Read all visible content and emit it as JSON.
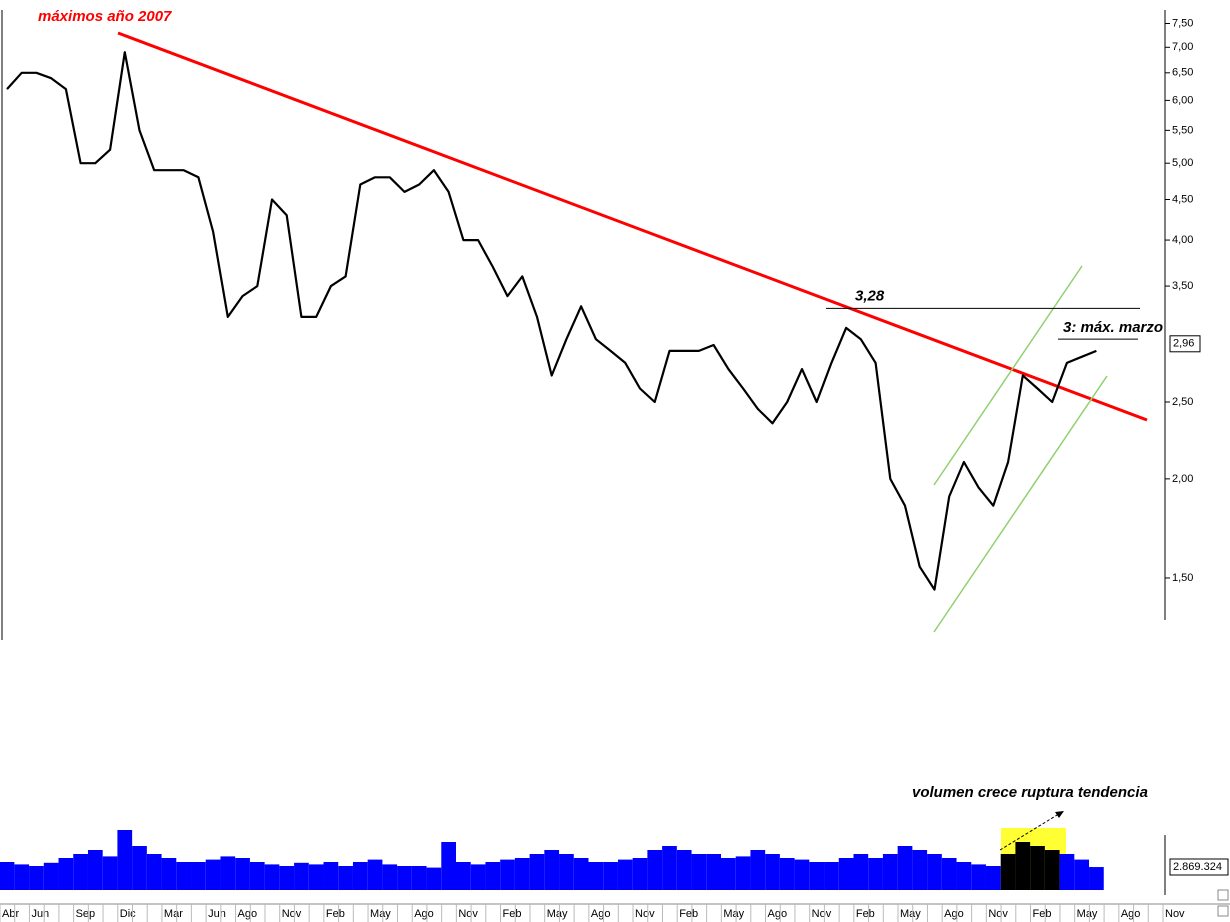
{
  "chart_data": [
    {
      "type": "line",
      "log_scale": true,
      "categories": [
        "Abr",
        null,
        "Jun",
        null,
        null,
        "Sep",
        null,
        null,
        "Dic",
        null,
        null,
        "Mar",
        null,
        null,
        "Jun",
        null,
        "Ago",
        null,
        null,
        "Nov",
        null,
        null,
        "Feb",
        null,
        null,
        "May",
        null,
        null,
        "Ago",
        null,
        null,
        "Nov",
        null,
        null,
        "Feb",
        null,
        null,
        "May",
        null,
        null,
        "Ago",
        null,
        null,
        "Nov",
        null,
        null,
        "Feb",
        null,
        null,
        "May",
        null,
        null,
        "Ago",
        null,
        null,
        "Nov",
        null,
        null,
        "Feb",
        null,
        null,
        "May",
        null,
        null,
        "Ago",
        null,
        null,
        "Nov",
        null,
        null,
        "Feb",
        null,
        null,
        "May",
        null,
        null,
        "Ago",
        null,
        null,
        "Nov"
      ],
      "series": [
        {
          "color": "#000000",
          "values": [
            6.2,
            6.5,
            6.5,
            6.4,
            6.2,
            5.0,
            5.0,
            5.2,
            6.9,
            5.5,
            4.9,
            4.9,
            4.9,
            4.8,
            4.1,
            3.2,
            3.4,
            3.5,
            4.5,
            4.3,
            3.2,
            3.2,
            3.5,
            3.6,
            4.7,
            4.8,
            4.8,
            4.6,
            4.7,
            4.9,
            4.6,
            4.0,
            4.0,
            3.7,
            3.4,
            3.6,
            3.2,
            2.7,
            3.0,
            3.3,
            3.0,
            2.9,
            2.8,
            2.6,
            2.5,
            2.9,
            2.9,
            2.9,
            2.95,
            2.75,
            2.6,
            2.45,
            2.35,
            2.5,
            2.75,
            2.5,
            2.8,
            3.1,
            3.0,
            2.8,
            2.0,
            1.85,
            1.55,
            1.45,
            1.9,
            2.1,
            1.95,
            1.85,
            2.1,
            2.7,
            2.6,
            2.5,
            2.8,
            2.85,
            2.9,
            null,
            null,
            null,
            null,
            null
          ]
        }
      ],
      "ylim": [
        1.32,
        7.8
      ],
      "yticks": [
        {
          "value": 1.5,
          "label": "1,50"
        },
        {
          "value": 2,
          "label": "2,00"
        },
        {
          "value": 2.5,
          "label": "2,50"
        },
        {
          "value": 3.5,
          "label": "3,50"
        },
        {
          "value": 4,
          "label": "4,00"
        },
        {
          "value": 4.5,
          "label": "4,50"
        },
        {
          "value": 5,
          "label": "5,00"
        },
        {
          "value": 5.5,
          "label": "5,50"
        },
        {
          "value": 6,
          "label": "6,00"
        },
        {
          "value": 6.5,
          "label": "6,50"
        },
        {
          "value": 7,
          "label": "7,00"
        },
        {
          "value": 7.5,
          "label": "7,50"
        }
      ],
      "title": "máximos año 2007",
      "hlines": [
        {
          "value": 3.28,
          "label": "3,28"
        },
        {
          "value": 3.0,
          "label": "3: máx. marzo"
        }
      ],
      "last_price": {
        "value": 2.96,
        "label": "2,96"
      }
    },
    {
      "type": "bar",
      "color": "#0000ff",
      "values": [
        3500000,
        3200000,
        3000000,
        3400000,
        4000000,
        4500000,
        5000000,
        4200000,
        7500000,
        5500000,
        4500000,
        4000000,
        3500000,
        3500000,
        3800000,
        4200000,
        4000000,
        3500000,
        3200000,
        3000000,
        3400000,
        3200000,
        3500000,
        3000000,
        3500000,
        3800000,
        3200000,
        3000000,
        3000000,
        2800000,
        6000000,
        3500000,
        3200000,
        3500000,
        3800000,
        4000000,
        4500000,
        5000000,
        4500000,
        4000000,
        3500000,
        3500000,
        3800000,
        4000000,
        5000000,
        5500000,
        5000000,
        4500000,
        4500000,
        4000000,
        4200000,
        5000000,
        4500000,
        4000000,
        3800000,
        3500000,
        3500000,
        4000000,
        4500000,
        4000000,
        4500000,
        5500000,
        5000000,
        4500000,
        4000000,
        3500000,
        3200000,
        3000000,
        4500000,
        6000000,
        5500000,
        5000000,
        4500000,
        3800000,
        2869324,
        null,
        null,
        null,
        null,
        null
      ],
      "ylim": [
        0,
        25000000
      ],
      "annotation": "volumen crece ruptura tendencia",
      "last_value": {
        "value": 2869324,
        "label": "2.869.324"
      }
    }
  ]
}
